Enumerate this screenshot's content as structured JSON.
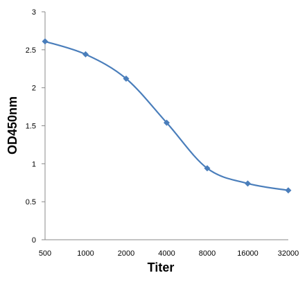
{
  "chart_data": {
    "type": "line",
    "xlabel": "Titer",
    "ylabel": "OD450nm",
    "categories": [
      "500",
      "1000",
      "2000",
      "4000",
      "8000",
      "16000",
      "32000"
    ],
    "series": [
      {
        "values": [
          2.61,
          2.44,
          2.12,
          1.54,
          0.94,
          0.74,
          0.65
        ],
        "color": "#4a7ebb",
        "marker": "diamond"
      }
    ],
    "ylim": [
      0,
      3
    ],
    "yticks": [
      "0",
      "0.5",
      "1",
      "1.5",
      "2",
      "2.5",
      "3"
    ],
    "grid": false,
    "legend": "none"
  }
}
